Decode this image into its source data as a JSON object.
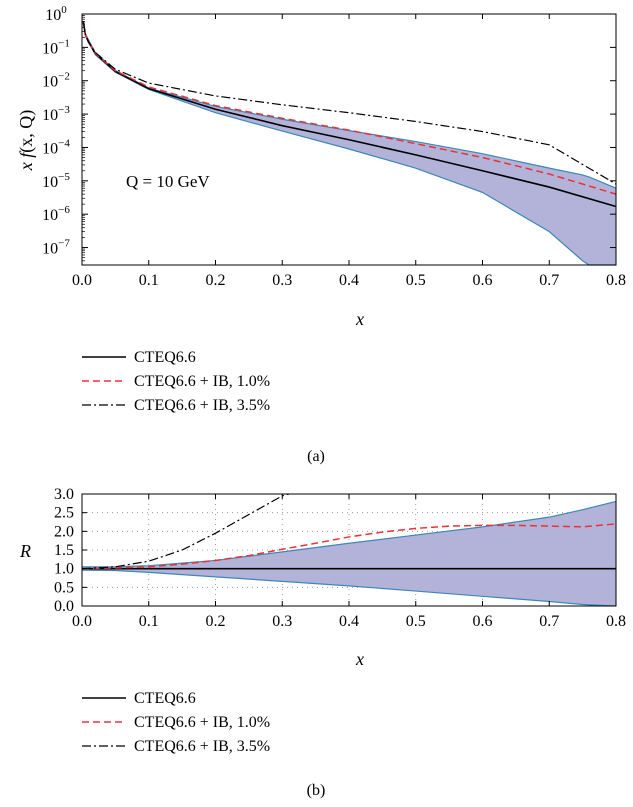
{
  "colors": {
    "band_fill": "#b3b3d9",
    "band_edge": "#3d87b7",
    "cteq": "#000000",
    "ib1": "#e8323a",
    "ib35": "#000000"
  },
  "chart_data": [
    {
      "type": "line",
      "panel_label": "(a)",
      "xlabel": "x",
      "ylabel_parts": [
        "x f",
        "(x, Q)"
      ],
      "annotation": "Q = 10 GeV",
      "xlim": [
        0,
        0.8
      ],
      "ylim": [
        3e-08,
        1
      ],
      "yscale": "log",
      "xticks": [
        0,
        0.1,
        0.2,
        0.3,
        0.4,
        0.5,
        0.6,
        0.7,
        0.8
      ],
      "xtick_labels": [
        "0.0",
        "0.1",
        "0.2",
        "0.3",
        "0.4",
        "0.5",
        "0.6",
        "0.7",
        "0.8"
      ],
      "ytick_exponents": [
        0,
        -1,
        -2,
        -3,
        -4,
        -5,
        -6,
        -7
      ],
      "grid": false,
      "legend": [
        "CTEQ6.6",
        "CTEQ6.6 + IB, 1.0%",
        "CTEQ6.6 + IB, 3.5%"
      ],
      "band": {
        "x": [
          0.005,
          0.02,
          0.05,
          0.1,
          0.2,
          0.3,
          0.4,
          0.5,
          0.6,
          0.7,
          0.75,
          0.76,
          0.8
        ],
        "upper": [
          0.25,
          0.07,
          0.02,
          0.006,
          0.0017,
          0.0007,
          0.00032,
          0.00015,
          6.5e-05,
          2.4e-05,
          1.5e-05,
          1.3e-05,
          6e-06
        ],
        "lower": [
          0.23,
          0.06,
          0.018,
          0.0055,
          0.0011,
          0.00031,
          9e-05,
          2.4e-05,
          4.5e-06,
          3e-07,
          4e-08,
          3e-08,
          3e-08
        ]
      },
      "series": [
        {
          "name": "CTEQ6.6",
          "x": [
            0.002,
            0.005,
            0.01,
            0.02,
            0.05,
            0.1,
            0.2,
            0.3,
            0.4,
            0.5,
            0.6,
            0.7,
            0.8
          ],
          "y": [
            0.6,
            0.24,
            0.14,
            0.065,
            0.019,
            0.0058,
            0.0014,
            0.00045,
            0.00017,
            6e-05,
            2e-05,
            6.5e-06,
            1.7e-06
          ]
        },
        {
          "name": "CTEQ6.6 + IB, 1.0%",
          "x": [
            0.002,
            0.005,
            0.01,
            0.02,
            0.05,
            0.1,
            0.2,
            0.3,
            0.4,
            0.5,
            0.6,
            0.7,
            0.8
          ],
          "y": [
            0.6,
            0.24,
            0.14,
            0.066,
            0.02,
            0.0065,
            0.0018,
            0.00075,
            0.00033,
            0.00013,
            5e-05,
            1.6e-05,
            4e-06
          ]
        },
        {
          "name": "CTEQ6.6 + IB, 3.5%",
          "x": [
            0.002,
            0.005,
            0.01,
            0.02,
            0.05,
            0.1,
            0.2,
            0.3,
            0.4,
            0.5,
            0.6,
            0.7,
            0.8
          ],
          "y": [
            0.6,
            0.25,
            0.145,
            0.07,
            0.022,
            0.0085,
            0.0035,
            0.0019,
            0.0011,
            0.0006,
            0.0003,
            0.00012,
            8e-06
          ]
        }
      ]
    },
    {
      "type": "line",
      "panel_label": "(b)",
      "xlabel": "x",
      "ylabel": "R",
      "xlim": [
        0,
        0.8
      ],
      "ylim": [
        0,
        3
      ],
      "xticks": [
        0,
        0.1,
        0.2,
        0.3,
        0.4,
        0.5,
        0.6,
        0.7,
        0.8
      ],
      "xtick_labels": [
        "0.0",
        "0.1",
        "0.2",
        "0.3",
        "0.4",
        "0.5",
        "0.6",
        "0.7",
        "0.8"
      ],
      "yticks": [
        0,
        0.5,
        1,
        1.5,
        2,
        2.5,
        3
      ],
      "ytick_labels": [
        "0.0",
        "0.5",
        "1.0",
        "1.5",
        "2.0",
        "2.5",
        "3.0"
      ],
      "grid": true,
      "legend": [
        "CTEQ6.6",
        "CTEQ6.6 + IB, 1.0%",
        "CTEQ6.6 + IB, 3.5%"
      ],
      "band": {
        "x": [
          0,
          0.05,
          0.1,
          0.2,
          0.3,
          0.4,
          0.5,
          0.6,
          0.7,
          0.75,
          0.8
        ],
        "upper": [
          1.05,
          1.05,
          1.08,
          1.22,
          1.45,
          1.68,
          1.9,
          2.12,
          2.38,
          2.58,
          2.8
        ],
        "lower": [
          0.96,
          0.95,
          0.9,
          0.78,
          0.66,
          0.54,
          0.4,
          0.26,
          0.12,
          0.04,
          0.0
        ]
      },
      "series": [
        {
          "name": "CTEQ6.6",
          "x": [
            0,
            0.8
          ],
          "y": [
            1,
            1
          ]
        },
        {
          "name": "CTEQ6.6 + IB, 1.0%",
          "x": [
            0,
            0.05,
            0.1,
            0.15,
            0.2,
            0.25,
            0.3,
            0.35,
            0.4,
            0.45,
            0.5,
            0.55,
            0.6,
            0.65,
            0.7,
            0.75,
            0.8
          ],
          "y": [
            1,
            1.02,
            1.05,
            1.12,
            1.22,
            1.35,
            1.52,
            1.68,
            1.85,
            1.98,
            2.08,
            2.14,
            2.16,
            2.16,
            2.14,
            2.12,
            2.2
          ]
        },
        {
          "name": "CTEQ6.6 + IB, 3.5%",
          "x": [
            0,
            0.05,
            0.1,
            0.15,
            0.2,
            0.25,
            0.28,
            0.3,
            0.31
          ],
          "y": [
            1,
            1.05,
            1.2,
            1.5,
            1.95,
            2.45,
            2.75,
            2.95,
            3.0
          ]
        }
      ]
    }
  ]
}
